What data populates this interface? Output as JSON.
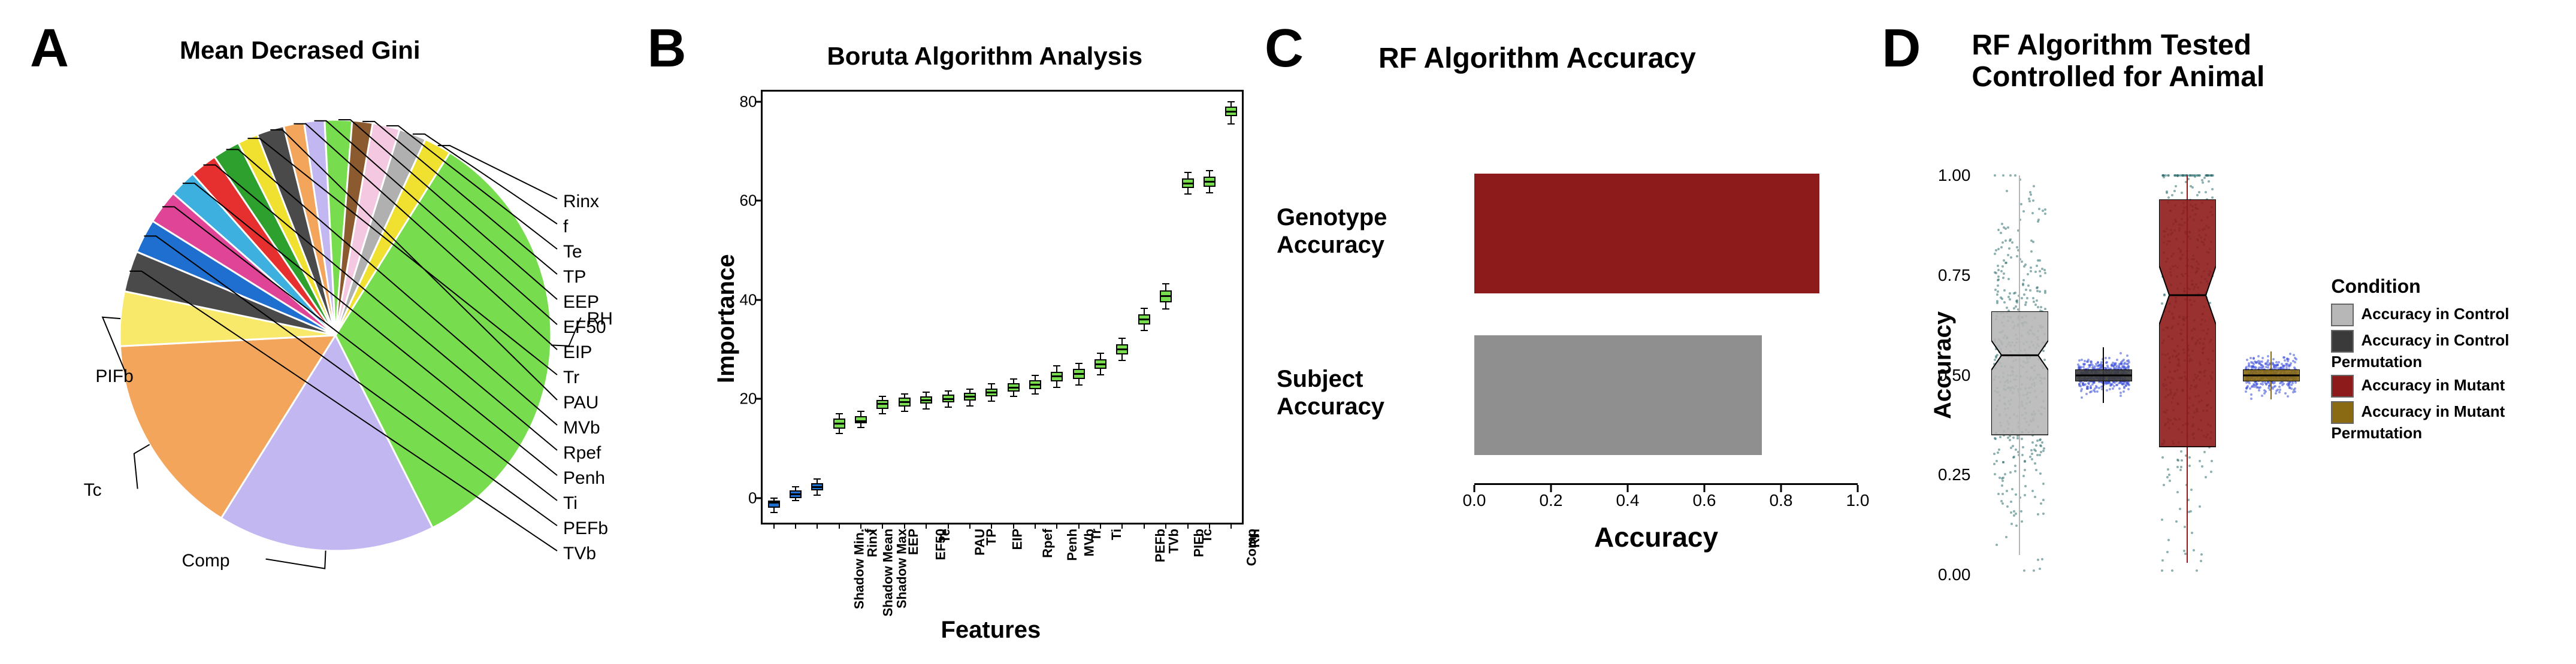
{
  "background_color": "#ffffff",
  "panelA": {
    "label": "A",
    "title": "Mean Decrased Gini",
    "title_fontsize": 42,
    "pie": {
      "type": "pie",
      "slices": [
        {
          "name": "RH",
          "value": 33.0,
          "color": "#77dd4e"
        },
        {
          "name": "Comp",
          "value": 16.0,
          "color": "#c3b7f2"
        },
        {
          "name": "Tc",
          "value": 15.0,
          "color": "#f3a65b"
        },
        {
          "name": "PIFb",
          "value": 4.0,
          "color": "#f9e96a"
        },
        {
          "name": "TVb",
          "value": 3.0,
          "color": "#4a4a4a"
        },
        {
          "name": "PEFb",
          "value": 2.5,
          "color": "#1f6fd0"
        },
        {
          "name": "Ti",
          "value": 2.5,
          "color": "#e04497"
        },
        {
          "name": "Penh",
          "value": 2.0,
          "color": "#3db0e0"
        },
        {
          "name": "Rpef",
          "value": 2.0,
          "color": "#e63030"
        },
        {
          "name": "MVb",
          "value": 2.0,
          "color": "#2da02d"
        },
        {
          "name": "Tr",
          "value": 1.5,
          "color": "#f0e030"
        },
        {
          "name": "PAU",
          "value": 2.0,
          "color": "#4a4a4a"
        },
        {
          "name": "EIP",
          "value": 1.5,
          "color": "#f3a65b"
        },
        {
          "name": "EF50",
          "value": 1.5,
          "color": "#c3b7f2"
        },
        {
          "name": "EEP",
          "value": 2.0,
          "color": "#77dd4e"
        },
        {
          "name": "TP",
          "value": 1.5,
          "color": "#8c5a2f"
        },
        {
          "name": "Te",
          "value": 2.0,
          "color": "#f4c8e0"
        },
        {
          "name": "f",
          "value": 2.0,
          "color": "#b0b0b0"
        },
        {
          "name": "Rinx",
          "value": 2.0,
          "color": "#f0e030"
        }
      ],
      "start_angle_deg": -58,
      "label_fontsize": 30,
      "stroke": "#ffffff",
      "stroke_width": 3
    }
  },
  "panelB": {
    "label": "B",
    "title": "Boruta Algorithm Analysis",
    "title_fontsize": 42,
    "chart": {
      "type": "boxplot",
      "xlabel": "Features",
      "ylabel": "Importance",
      "label_fontsize": 40,
      "ylim": [
        -5,
        82
      ],
      "yticks": [
        0,
        20,
        40,
        60,
        80
      ],
      "tick_fontsize": 26,
      "border_color": "#000000",
      "categories": [
        {
          "name": "Shadow Min.",
          "color": "#1f6fd0",
          "q1": -2,
          "med": -1,
          "q3": -0.5,
          "lo": -3,
          "hi": 0
        },
        {
          "name": "Shadow Mean",
          "color": "#1f6fd0",
          "q1": 0,
          "med": 0.8,
          "q3": 1.5,
          "lo": -0.5,
          "hi": 2.2
        },
        {
          "name": "Shadow Max",
          "color": "#1f6fd0",
          "q1": 1.5,
          "med": 2.2,
          "q3": 3,
          "lo": 0.5,
          "hi": 3.8
        },
        {
          "name": "Rinx",
          "color": "#77dd4e",
          "q1": 14,
          "med": 15,
          "q3": 16,
          "lo": 13,
          "hi": 17
        },
        {
          "name": "f",
          "color": "#77dd4e",
          "q1": 15,
          "med": 15.5,
          "q3": 16.5,
          "lo": 14.2,
          "hi": 17.5
        },
        {
          "name": "EEP",
          "color": "#77dd4e",
          "q1": 18,
          "med": 19,
          "q3": 19.8,
          "lo": 17,
          "hi": 20.5
        },
        {
          "name": "EF50",
          "color": "#77dd4e",
          "q1": 18.5,
          "med": 19.3,
          "q3": 20.2,
          "lo": 17.5,
          "hi": 21
        },
        {
          "name": "Te",
          "color": "#77dd4e",
          "q1": 19,
          "med": 19.7,
          "q3": 20.5,
          "lo": 18,
          "hi": 21.3
        },
        {
          "name": "PAU",
          "color": "#77dd4e",
          "q1": 19.3,
          "med": 20,
          "q3": 20.8,
          "lo": 18.3,
          "hi": 21.6
        },
        {
          "name": "TP",
          "color": "#77dd4e",
          "q1": 19.6,
          "med": 20.4,
          "q3": 21.2,
          "lo": 18.6,
          "hi": 22
        },
        {
          "name": "EIP",
          "color": "#77dd4e",
          "q1": 20.5,
          "med": 21.3,
          "q3": 22.1,
          "lo": 19.5,
          "hi": 23
        },
        {
          "name": "Rpef",
          "color": "#77dd4e",
          "q1": 21.5,
          "med": 22.3,
          "q3": 23.1,
          "lo": 20.5,
          "hi": 24
        },
        {
          "name": "Penh",
          "color": "#77dd4e",
          "q1": 22,
          "med": 22.9,
          "q3": 23.8,
          "lo": 21,
          "hi": 24.7
        },
        {
          "name": "MVb",
          "color": "#77dd4e",
          "q1": 23.5,
          "med": 24.5,
          "q3": 25.5,
          "lo": 22.3,
          "hi": 26.7
        },
        {
          "name": "Tr",
          "color": "#77dd4e",
          "q1": 24,
          "med": 25,
          "q3": 26,
          "lo": 22.8,
          "hi": 27.2
        },
        {
          "name": "Ti",
          "color": "#77dd4e",
          "q1": 26,
          "med": 27,
          "q3": 28,
          "lo": 24.8,
          "hi": 29.2
        },
        {
          "name": "PEFb",
          "color": "#77dd4e",
          "q1": 29,
          "med": 30,
          "q3": 31,
          "lo": 27.8,
          "hi": 32.2
        },
        {
          "name": "TVb",
          "color": "#77dd4e",
          "q1": 35,
          "med": 36,
          "q3": 37,
          "lo": 33.8,
          "hi": 38.2
        },
        {
          "name": "PIFb",
          "color": "#77dd4e",
          "q1": 39.5,
          "med": 40.7,
          "q3": 41.9,
          "lo": 38.1,
          "hi": 43.2
        },
        {
          "name": "Tc",
          "color": "#77dd4e",
          "q1": 62.5,
          "med": 63.5,
          "q3": 64.5,
          "lo": 61.3,
          "hi": 65.7
        },
        {
          "name": "Comp",
          "color": "#77dd4e",
          "q1": 62.8,
          "med": 63.8,
          "q3": 64.8,
          "lo": 61.6,
          "hi": 66
        },
        {
          "name": "RH",
          "color": "#77dd4e",
          "q1": 77,
          "med": 78,
          "q3": 79,
          "lo": 75.5,
          "hi": 80
        }
      ]
    }
  },
  "panelC": {
    "label": "C",
    "title": "RF Algorithm Accuracy",
    "title_fontsize": 48,
    "chart": {
      "type": "bar",
      "xlabel": "Accuracy",
      "label_fontsize": 46,
      "xlim": [
        0,
        1
      ],
      "xticks": [
        0.0,
        0.2,
        0.4,
        0.6,
        0.8,
        1.0
      ],
      "tick_fontsize": 28,
      "bars": [
        {
          "label": "Genotype\nAccuracy",
          "value": 0.9,
          "color": "#8e1b1b"
        },
        {
          "label": "Subject\nAccuracy",
          "value": 0.75,
          "color": "#8f8f8f"
        }
      ]
    }
  },
  "panelD": {
    "label": "D",
    "title": "RF Algorithm Tested\nControlled for Animal",
    "title_fontsize": 48,
    "chart": {
      "type": "boxplot+jitter",
      "ylabel": "Accuracy",
      "label_fontsize": 40,
      "ylim": [
        0.0,
        1.05
      ],
      "yticks": [
        0.0,
        0.25,
        0.5,
        0.75,
        1.0
      ],
      "tick_fontsize": 28,
      "background": "#ffffff",
      "grid_color": "#ffffff",
      "groups": [
        {
          "name": "Accuracy in Control",
          "color": "#b7b7b7",
          "fill": "#b7b7b7",
          "q1": 0.35,
          "med": 0.55,
          "q3": 0.66,
          "lo": 0.05,
          "hi": 1.0,
          "notch": true,
          "jitter_color": "#2f6f6f",
          "n": 500,
          "mean": 0.52,
          "sd": 0.2
        },
        {
          "name": "Accuracy in Control Permutation",
          "color": "#000000",
          "fill": "#3a3a3a",
          "q1": 0.485,
          "med": 0.5,
          "q3": 0.515,
          "lo": 0.43,
          "hi": 0.57,
          "notch": false,
          "jitter_color": "#3b4fd8",
          "n": 400,
          "mean": 0.5,
          "sd": 0.02
        },
        {
          "name": "Accuracy in Mutant",
          "color": "#8e1b1b",
          "fill": "#8e1b1b",
          "q1": 0.32,
          "med": 0.7,
          "q3": 0.94,
          "lo": 0.03,
          "hi": 1.0,
          "notch": true,
          "jitter_color": "#2f6f6f",
          "n": 500,
          "mean": 0.65,
          "sd": 0.28
        },
        {
          "name": "Accuracy in Mutant Permutation",
          "color": "#8a6a12",
          "fill": "#8a6a12",
          "q1": 0.485,
          "med": 0.5,
          "q3": 0.515,
          "lo": 0.44,
          "hi": 0.56,
          "notch": false,
          "jitter_color": "#3b4fd8",
          "n": 400,
          "mean": 0.5,
          "sd": 0.02
        }
      ],
      "legend": {
        "title": "Condition",
        "title_fontsize": 32,
        "item_fontsize": 26
      }
    }
  }
}
